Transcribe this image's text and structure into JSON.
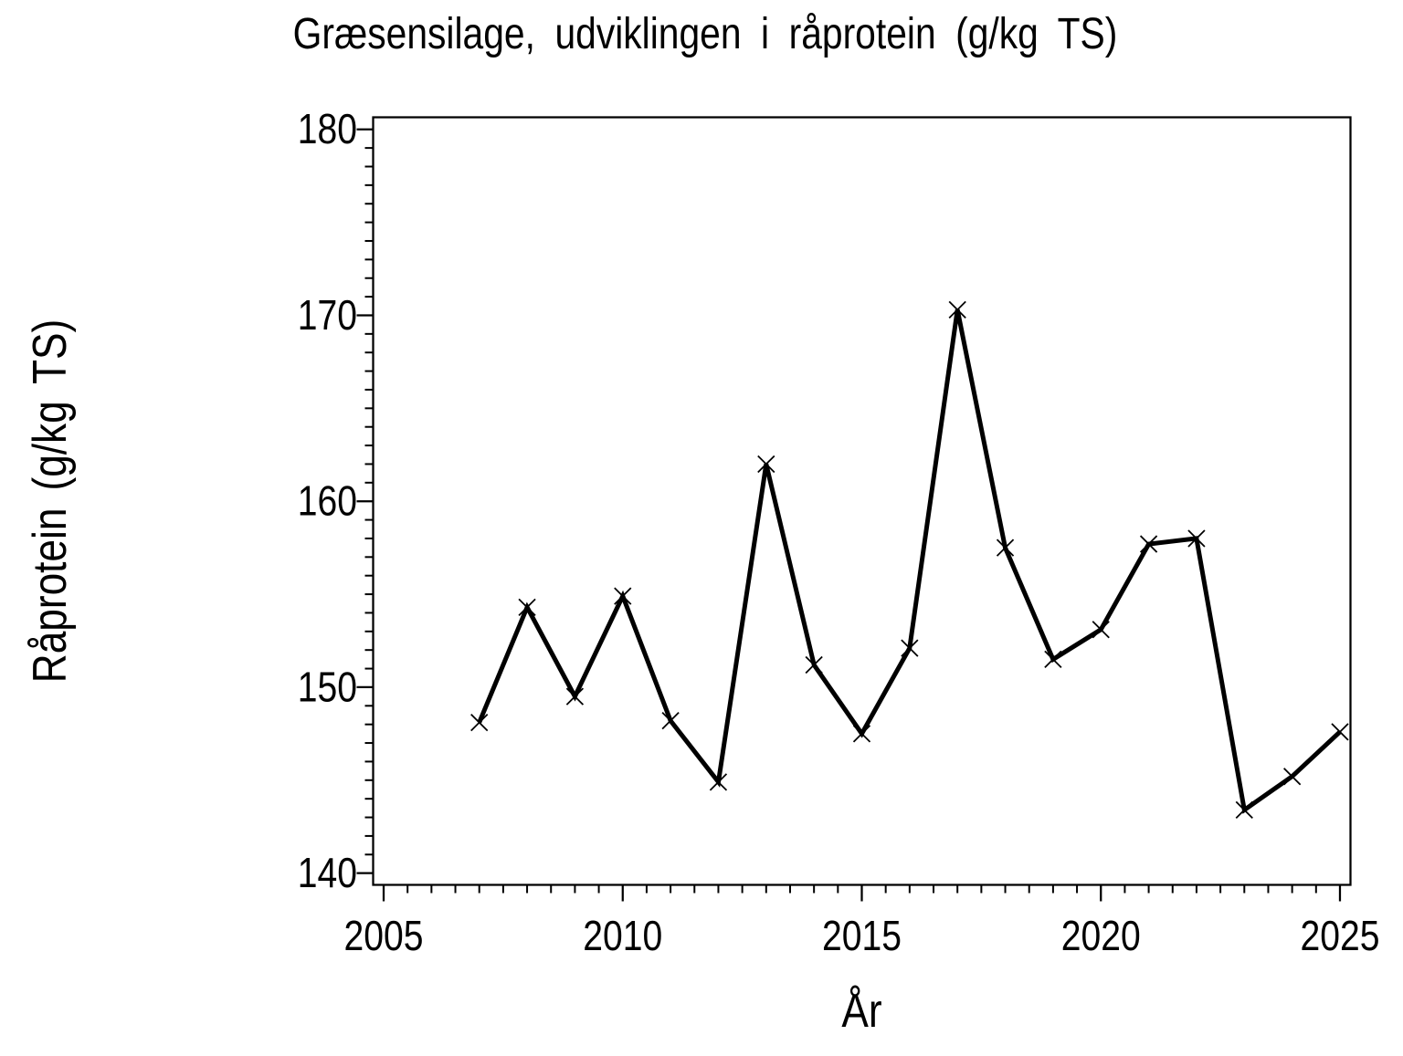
{
  "figure": {
    "background": "#ffffff",
    "foreground": "#000000"
  },
  "chart_data": {
    "type": "line",
    "title": "Græsensilage, udviklingen i råprotein (g/kg TS)",
    "xlabel": "År",
    "ylabel": "Råprotein (g/kg TS)",
    "grid": "off",
    "legend": "none",
    "x_axis": {
      "tick_labels": [
        "2005",
        "2010",
        "2015",
        "2020",
        "2025"
      ],
      "tick_values": [
        2005,
        2010,
        2015,
        2020,
        2025
      ],
      "minor_tick_step": 0.5,
      "range": [
        2004.78,
        2025.22
      ]
    },
    "y_axis": {
      "tick_labels": [
        "140",
        "150",
        "160",
        "170",
        "180"
      ],
      "tick_values": [
        140,
        150,
        160,
        170,
        180
      ],
      "minor_tick_step": 1,
      "range": [
        139.37,
        180.65
      ]
    },
    "series": [
      {
        "marker": "x",
        "color": "#000000",
        "x": [
          2007,
          2008,
          2009,
          2010,
          2011,
          2012,
          2013,
          2014,
          2015,
          2016,
          2017,
          2018,
          2019,
          2020,
          2021,
          2022,
          2023,
          2024,
          2025
        ],
        "values": [
          148.1,
          154.3,
          149.5,
          154.9,
          148.2,
          144.9,
          162.0,
          151.2,
          147.5,
          152.1,
          170.3,
          157.5,
          151.5,
          153.1,
          157.7,
          158.0,
          143.4,
          145.2,
          147.6
        ]
      }
    ]
  }
}
